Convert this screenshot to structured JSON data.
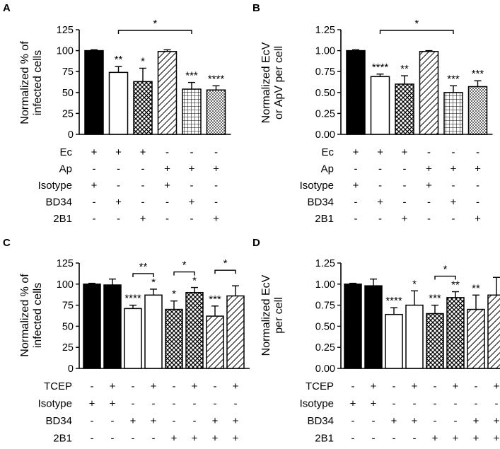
{
  "chart_data": [
    {
      "panel": "A",
      "type": "bar",
      "ylabel": "Normalized % of infected cells",
      "ylabel_lines": [
        "Normalized % of",
        "infected cells"
      ],
      "ylim": [
        0,
        125
      ],
      "yticks": [
        "0",
        "25",
        "50",
        "75",
        "100",
        "125"
      ],
      "values": [
        100,
        74,
        63,
        99,
        54,
        53
      ],
      "errors": [
        1,
        7,
        16,
        2,
        8,
        5
      ],
      "fills": [
        "solid",
        "white",
        "cross",
        "diag",
        "grid",
        "dots"
      ],
      "annotations": [
        "",
        "**",
        "*",
        "",
        "***",
        "****"
      ],
      "brackets": [
        {
          "from": 1,
          "to": 4,
          "label": "*"
        }
      ],
      "rows": [
        {
          "label": "Ec",
          "marks": [
            "+",
            "+",
            "+",
            "-",
            "-",
            "-"
          ]
        },
        {
          "label": "Ap",
          "marks": [
            "-",
            "-",
            "-",
            "+",
            "+",
            "+"
          ]
        },
        {
          "label": "Isotype",
          "marks": [
            "+",
            "-",
            "-",
            "+",
            "-",
            "-"
          ]
        },
        {
          "label": "BD34",
          "marks": [
            "-",
            "+",
            "-",
            "-",
            "+",
            "-"
          ]
        },
        {
          "label": "2B1",
          "marks": [
            "-",
            "-",
            "+",
            "-",
            "-",
            "+"
          ]
        }
      ]
    },
    {
      "panel": "B",
      "type": "bar",
      "ylabel": "Normalized EcV or ApV per cell",
      "ylabel_lines": [
        "Normalized EcV",
        "or ApV per cell"
      ],
      "ylim": [
        0,
        1.25
      ],
      "yticks": [
        "0.00",
        "0.25",
        "0.50",
        "0.75",
        "1.00",
        "1.25"
      ],
      "values": [
        1.0,
        0.69,
        0.6,
        0.99,
        0.5,
        0.57
      ],
      "errors": [
        0.01,
        0.03,
        0.1,
        0.01,
        0.08,
        0.07
      ],
      "fills": [
        "solid",
        "white",
        "cross",
        "diag",
        "grid",
        "dots"
      ],
      "annotations": [
        "",
        "****",
        "**",
        "",
        "***",
        "***"
      ],
      "brackets": [
        {
          "from": 1,
          "to": 4,
          "label": "*"
        }
      ],
      "rows": [
        {
          "label": "Ec",
          "marks": [
            "+",
            "+",
            "+",
            "-",
            "-",
            "-"
          ]
        },
        {
          "label": "Ap",
          "marks": [
            "-",
            "-",
            "-",
            "+",
            "+",
            "+"
          ]
        },
        {
          "label": "Isotype",
          "marks": [
            "+",
            "-",
            "-",
            "+",
            "-",
            "-"
          ]
        },
        {
          "label": "BD34",
          "marks": [
            "-",
            "+",
            "-",
            "-",
            "+",
            "-"
          ]
        },
        {
          "label": "2B1",
          "marks": [
            "-",
            "-",
            "+",
            "-",
            "-",
            "+"
          ]
        }
      ]
    },
    {
      "panel": "C",
      "type": "bar",
      "ylabel": "Normalized % of infected cells",
      "ylabel_lines": [
        "Normalized % of",
        "infected cells"
      ],
      "ylim": [
        0,
        125
      ],
      "yticks": [
        "0",
        "25",
        "50",
        "75",
        "100",
        "125"
      ],
      "values": [
        100,
        99,
        71,
        87,
        70,
        90,
        62,
        86
      ],
      "errors": [
        1,
        7,
        4,
        7,
        10,
        6,
        12,
        12
      ],
      "fills": [
        "solid",
        "solid",
        "white",
        "white",
        "cross",
        "cross",
        "diag",
        "diag"
      ],
      "annotations": [
        "",
        "",
        "****",
        "*",
        "*",
        "*",
        "***",
        ""
      ],
      "brackets": [
        {
          "from": 2,
          "to": 3,
          "label": "**"
        },
        {
          "from": 4,
          "to": 5,
          "label": "*"
        },
        {
          "from": 6,
          "to": 7,
          "label": "*"
        }
      ],
      "rows": [
        {
          "label": "TCEP",
          "marks": [
            "-",
            "+",
            "-",
            "+",
            "-",
            "+",
            "-",
            "+"
          ]
        },
        {
          "label": "Isotype",
          "marks": [
            "+",
            "+",
            "-",
            "-",
            "-",
            "-",
            "-",
            "-"
          ]
        },
        {
          "label": "BD34",
          "marks": [
            "-",
            "-",
            "+",
            "+",
            "-",
            "-",
            "+",
            "+"
          ]
        },
        {
          "label": "2B1",
          "marks": [
            "-",
            "-",
            "-",
            "-",
            "+",
            "+",
            "+",
            "+"
          ]
        }
      ]
    },
    {
      "panel": "D",
      "type": "bar",
      "ylabel": "Normalized EcV per cell",
      "ylabel_lines": [
        "Normalized EcV",
        "per cell"
      ],
      "ylim": [
        0,
        1.25
      ],
      "yticks": [
        "0.00",
        "0.25",
        "0.50",
        "0.75",
        "1.00",
        "1.25"
      ],
      "values": [
        1.0,
        0.98,
        0.64,
        0.75,
        0.65,
        0.84,
        0.7,
        0.87
      ],
      "errors": [
        0.01,
        0.08,
        0.08,
        0.17,
        0.1,
        0.07,
        0.17,
        0.21
      ],
      "fills": [
        "solid",
        "solid",
        "white",
        "white",
        "cross",
        "cross",
        "diag",
        "diag"
      ],
      "annotations": [
        "",
        "",
        "****",
        "*",
        "***",
        "**",
        "**",
        ""
      ],
      "brackets": [
        {
          "from": 4,
          "to": 5,
          "label": "*"
        }
      ],
      "rows": [
        {
          "label": "TCEP",
          "marks": [
            "-",
            "+",
            "-",
            "+",
            "-",
            "+",
            "-",
            "+"
          ]
        },
        {
          "label": "Isotype",
          "marks": [
            "+",
            "+",
            "-",
            "-",
            "-",
            "-",
            "-",
            "-"
          ]
        },
        {
          "label": "BD34",
          "marks": [
            "-",
            "-",
            "+",
            "+",
            "-",
            "-",
            "+",
            "+"
          ]
        },
        {
          "label": "2B1",
          "marks": [
            "-",
            "-",
            "-",
            "-",
            "+",
            "+",
            "+",
            "+"
          ]
        }
      ]
    }
  ]
}
